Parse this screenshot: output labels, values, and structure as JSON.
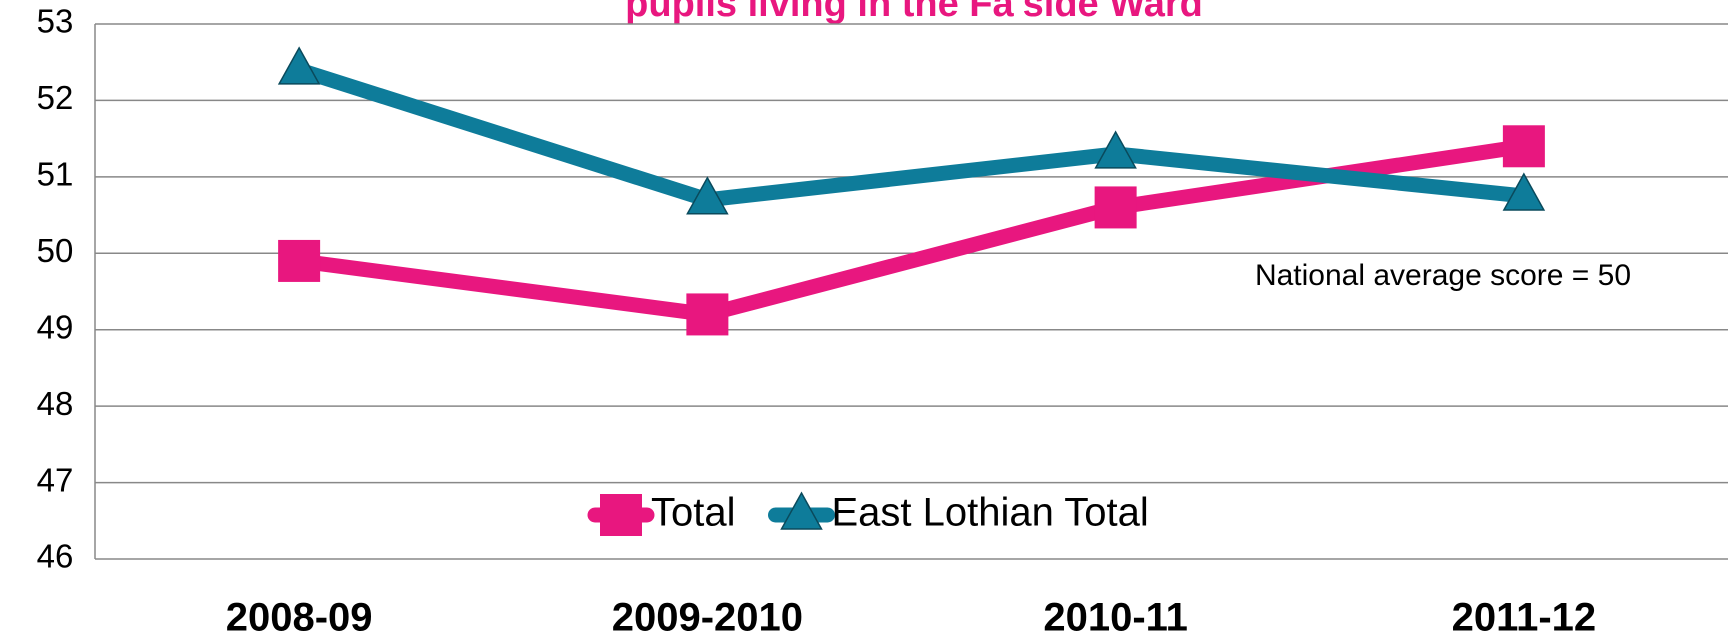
{
  "chart_data": {
    "type": "line",
    "title": "pupils living in the Fa'side  Ward",
    "annotation": "National average score = 50",
    "categories": [
      "2008-09",
      "2009-2010",
      "2010-11",
      "2011-12"
    ],
    "series": [
      {
        "name": "Total",
        "color": "#e8177f",
        "marker": "square",
        "values": [
          49.9,
          49.2,
          50.6,
          51.4
        ]
      },
      {
        "name": "East Lothian Total",
        "color": "#0e7c9a",
        "marker": "triangle",
        "values": [
          52.4,
          50.7,
          51.3,
          50.75
        ]
      }
    ],
    "ylim": [
      46,
      53
    ],
    "yticks": [
      46,
      47,
      48,
      49,
      50,
      51,
      52,
      53
    ],
    "grid": true,
    "legend": "bottom"
  }
}
